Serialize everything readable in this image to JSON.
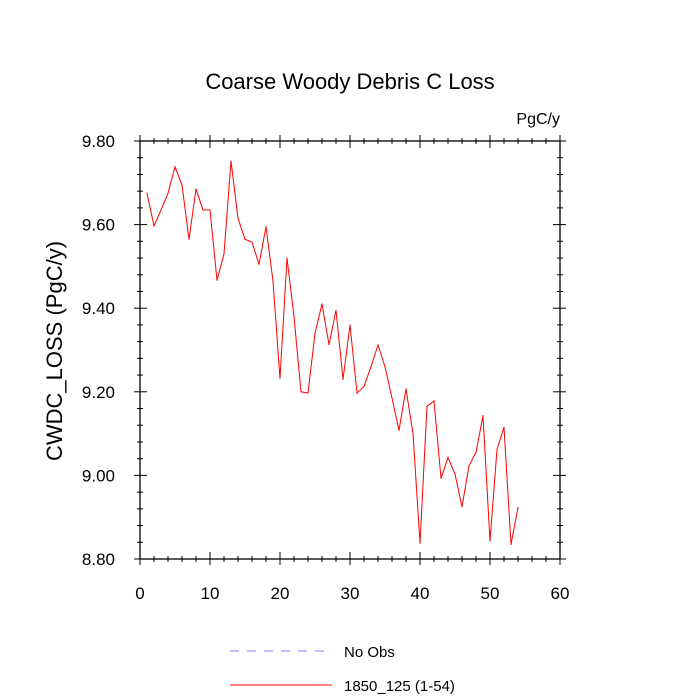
{
  "chart_data": {
    "type": "line",
    "title": "Coarse Woody Debris C Loss",
    "units": "PgC/y",
    "xlabel": "",
    "ylabel": "CWDC_LOSS  (PgC/y)",
    "xlim": [
      0,
      60
    ],
    "ylim": [
      8.8,
      9.8
    ],
    "xticks": [
      "0",
      "10",
      "20",
      "30",
      "40",
      "50",
      "60"
    ],
    "yticks": [
      "8.80",
      "9.00",
      "9.20",
      "9.40",
      "9.60",
      "9.80"
    ],
    "series": [
      {
        "name": "1850_125 (1-54)",
        "color": "#ff0000",
        "style": "solid",
        "x": [
          1,
          2,
          3,
          4,
          5,
          6,
          7,
          8,
          9,
          10,
          11,
          12,
          13,
          14,
          15,
          16,
          17,
          18,
          19,
          20,
          21,
          22,
          23,
          24,
          25,
          26,
          27,
          28,
          29,
          30,
          31,
          32,
          33,
          34,
          35,
          36,
          37,
          38,
          39,
          40,
          41,
          42,
          43,
          44,
          45,
          46,
          47,
          48,
          49,
          50,
          51,
          52,
          53,
          54
        ],
        "values": [
          9.675,
          9.597,
          9.635,
          9.675,
          9.738,
          9.695,
          9.565,
          9.685,
          9.635,
          9.635,
          9.467,
          9.53,
          9.752,
          9.615,
          9.565,
          9.558,
          9.505,
          9.595,
          9.465,
          9.232,
          9.52,
          9.38,
          9.2,
          9.197,
          9.34,
          9.41,
          9.313,
          9.395,
          9.23,
          9.36,
          9.197,
          9.213,
          9.26,
          9.312,
          9.26,
          9.185,
          9.108,
          9.207,
          9.1,
          8.838,
          9.165,
          9.178,
          8.993,
          9.043,
          9.003,
          8.925,
          9.023,
          9.055,
          9.143,
          8.843,
          9.062,
          9.115,
          8.835,
          8.923
        ]
      },
      {
        "name": "No Obs",
        "color": "#8080ff",
        "style": "dashed",
        "x": [],
        "values": []
      }
    ],
    "legend": "bottom"
  }
}
